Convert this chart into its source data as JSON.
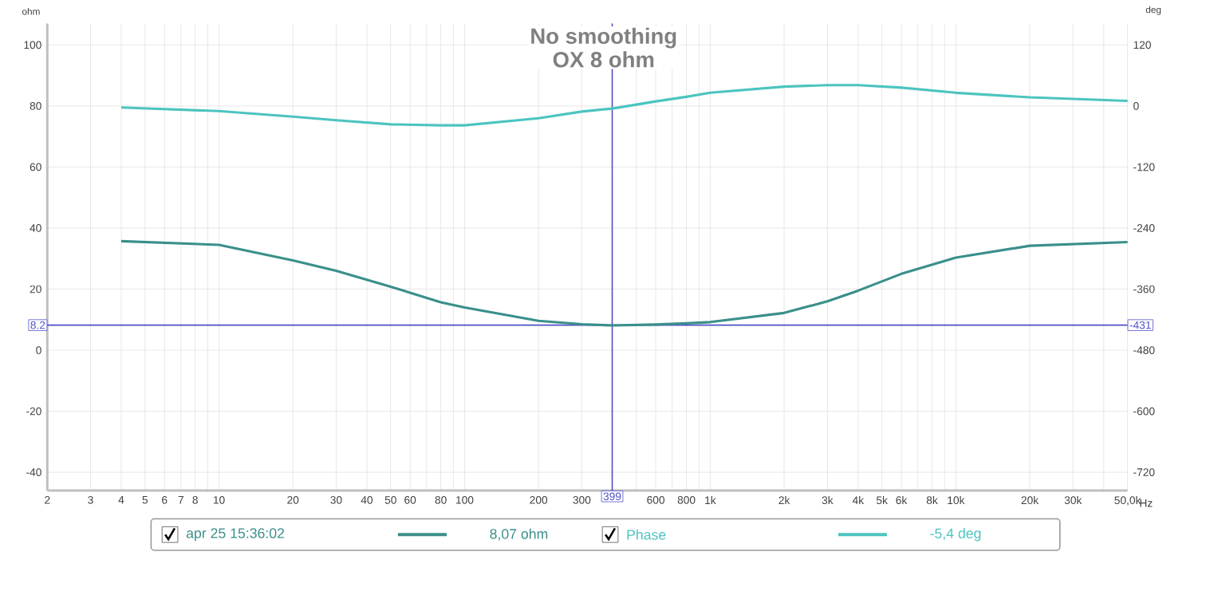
{
  "chart_data": {
    "type": "line",
    "title": "No smoothing",
    "subtitle": "OX 8 ohm",
    "xlabel": "Hz",
    "ylabel": "ohm",
    "y2label": "deg",
    "log": "x",
    "grid": true,
    "legend": "bottom",
    "xlim": [
      2,
      50000
    ],
    "ylim": [
      -46,
      107
    ],
    "y2lim": [
      -756,
      162
    ],
    "xticks": [
      2,
      3,
      4,
      5,
      6,
      7,
      8,
      {
        "value": 9,
        "label": null
      },
      10,
      20,
      30,
      40,
      50,
      60,
      {
        "value": 70,
        "label": null
      },
      80,
      {
        "value": 90,
        "label": null
      },
      100,
      200,
      300,
      {
        "value": 400,
        "label": null
      },
      {
        "value": 500,
        "label": null
      },
      600,
      {
        "value": 700,
        "label": null
      },
      800,
      {
        "value": 900,
        "label": null
      },
      {
        "value": 1000,
        "label": "1k"
      },
      {
        "value": 2000,
        "label": "2k"
      },
      {
        "value": 3000,
        "label": "3k"
      },
      {
        "value": 4000,
        "label": "4k"
      },
      {
        "value": 5000,
        "label": "5k"
      },
      {
        "value": 6000,
        "label": "6k"
      },
      {
        "value": 7000,
        "label": null
      },
      {
        "value": 8000,
        "label": "8k"
      },
      {
        "value": 9000,
        "label": null
      },
      {
        "value": 10000,
        "label": "10k"
      },
      {
        "value": 20000,
        "label": "20k"
      },
      {
        "value": 30000,
        "label": "30k"
      },
      {
        "value": 40000,
        "label": null
      },
      {
        "value": 50000,
        "label": "50,0k"
      }
    ],
    "yticks": [
      -40,
      -20,
      0,
      20,
      40,
      60,
      80,
      100
    ],
    "y2ticks": [
      -720,
      -600,
      -480,
      -360,
      -240,
      -120,
      0,
      120
    ],
    "x": [
      4,
      10,
      20,
      30,
      50,
      80,
      100,
      200,
      300,
      399,
      600,
      800,
      1000,
      2000,
      3000,
      4000,
      6000,
      10000,
      20000,
      50000
    ],
    "series": [
      {
        "name": "apr 25 15:36:02",
        "color": "#3a8f8a",
        "values": [
          35.7,
          34.5,
          29.4,
          26,
          20.8,
          15.7,
          14,
          9.6,
          8.5,
          8.1,
          8.4,
          8.8,
          9.2,
          12.2,
          16,
          19.5,
          25,
          30.3,
          34.2,
          35.4
        ]
      },
      {
        "name": "Phase",
        "color": "#4cc4c0",
        "axis": "y2",
        "values": [
          -3,
          -10,
          -21,
          -28,
          -36,
          -38,
          -38,
          -24,
          -11,
          -5,
          9,
          18,
          26,
          38,
          41,
          41,
          36,
          26,
          17,
          10
        ]
      }
    ],
    "ref_lines": [
      {
        "axis": "x",
        "value": 399,
        "label": "399",
        "color": "#5050c8"
      },
      {
        "axis": "y",
        "value": 8.2,
        "label": "8.2",
        "color": "#5050c8"
      }
    ],
    "annotations": [
      "8,07 ohm",
      "-5,4 deg",
      "-431"
    ]
  }
}
